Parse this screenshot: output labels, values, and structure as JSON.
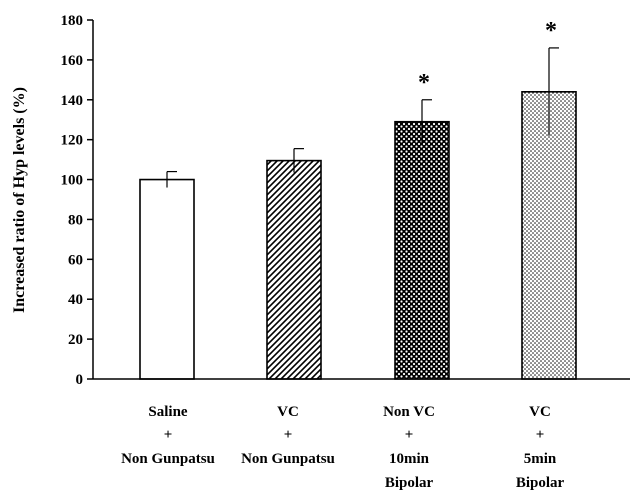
{
  "chart_data": {
    "type": "bar",
    "title": "",
    "xlabel": "",
    "ylabel": "Increased ratio of Hyp levels (%)",
    "ylim": [
      0,
      180
    ],
    "yticks": [
      0,
      20,
      40,
      60,
      80,
      100,
      120,
      140,
      160,
      180
    ],
    "grid": false,
    "legend": "none",
    "categories": [
      {
        "lines": [
          "Saline",
          "+",
          "Non Gunpatsu"
        ]
      },
      {
        "lines": [
          "VC",
          "+",
          "Non Gunpatsu"
        ]
      },
      {
        "lines": [
          "Non VC",
          "+",
          "10min",
          "Bipolar"
        ]
      },
      {
        "lines": [
          "VC",
          "+",
          "5min",
          "Bipolar"
        ]
      }
    ],
    "values": [
      100,
      109.5,
      129,
      144
    ],
    "errors": [
      4,
      6,
      11,
      22
    ],
    "patterns": [
      "white",
      "diagonal-hatch",
      "dense-dots",
      "light-dots"
    ],
    "annotations": [
      "",
      "",
      "*",
      "*"
    ]
  }
}
